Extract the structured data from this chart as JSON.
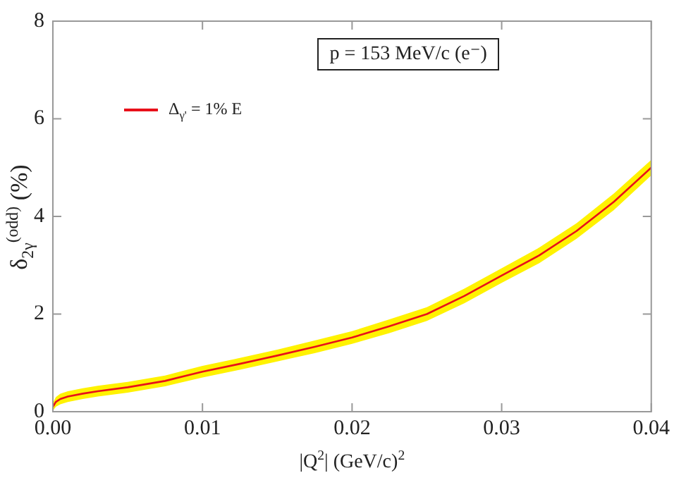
{
  "chart_data": {
    "type": "line",
    "xlabel": "|Q$^{2}$|  (GeV/c)$^{2}$",
    "ylabel": "δ$_{2γ}$$^{(odd)}$  (%)",
    "annotations": [
      "p = 153 MeV/c (e⁻)"
    ],
    "x": [
      0,
      0.0002,
      0.0005,
      0.001,
      0.002,
      0.003,
      0.005,
      0.0075,
      0.01,
      0.0125,
      0.015,
      0.0175,
      0.02,
      0.0225,
      0.025,
      0.0275,
      0.03,
      0.0325,
      0.035,
      0.0375,
      0.04
    ],
    "series": [
      {
        "name": "Δ$_{γ'}$ = 1% E",
        "color": "#e8101a",
        "values": [
          0.1,
          0.2,
          0.26,
          0.31,
          0.37,
          0.42,
          0.5,
          0.63,
          0.82,
          0.98,
          1.15,
          1.33,
          1.52,
          1.75,
          2.0,
          2.37,
          2.79,
          3.2,
          3.7,
          4.3,
          5.0
        ],
        "lower": [
          0.02,
          0.1,
          0.15,
          0.2,
          0.26,
          0.31,
          0.39,
          0.52,
          0.7,
          0.86,
          1.03,
          1.2,
          1.39,
          1.61,
          1.86,
          2.22,
          2.64,
          3.04,
          3.54,
          4.13,
          4.84
        ],
        "upper": [
          0.18,
          0.3,
          0.37,
          0.42,
          0.48,
          0.53,
          0.61,
          0.74,
          0.94,
          1.1,
          1.27,
          1.46,
          1.65,
          1.89,
          2.14,
          2.52,
          2.94,
          3.36,
          3.86,
          4.47,
          5.16
        ]
      }
    ],
    "xlim": [
      0,
      0.04
    ],
    "xticks": [
      {
        "value": 0,
        "label": "0.00"
      },
      0.01,
      0.02,
      0.03,
      0.04
    ],
    "ylim": [
      0,
      8
    ],
    "yticks": [
      0,
      2,
      4,
      6,
      8
    ],
    "grid": false,
    "legend": "top left",
    "marker": "none",
    "line_style": "solid"
  }
}
